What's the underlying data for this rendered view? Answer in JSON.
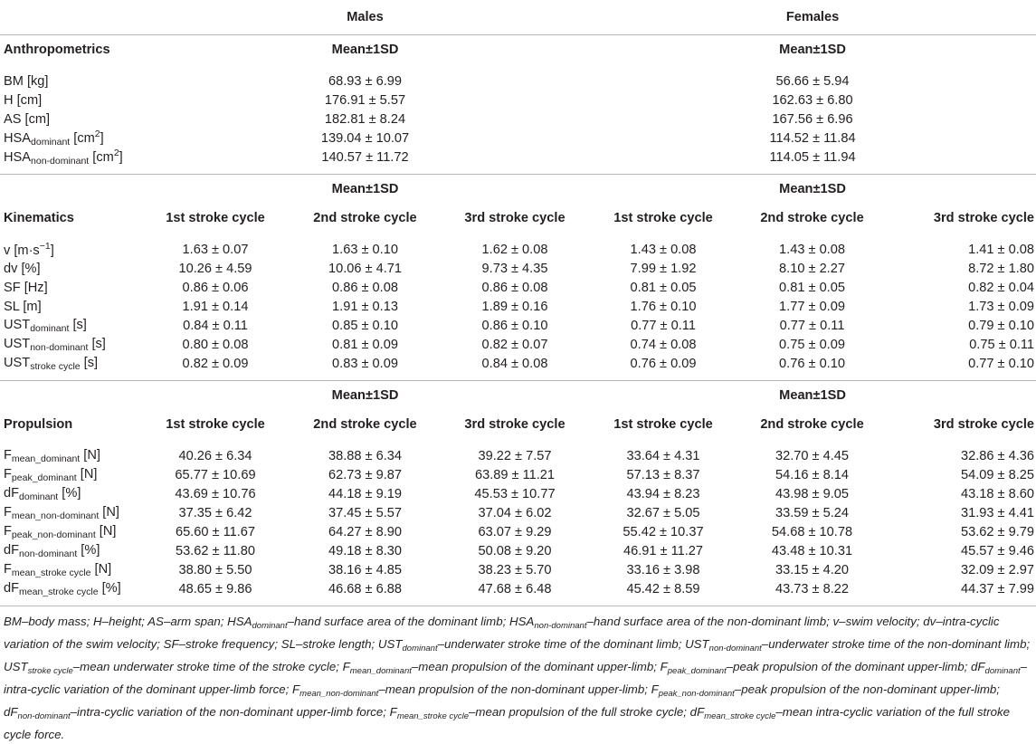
{
  "header": {
    "males": "Males",
    "females": "Females"
  },
  "anthro": {
    "title": "Anthropometrics",
    "mean_label": "Mean±1SD",
    "rows": [
      {
        "label": "BM [kg]",
        "m": "68.93 ± 6.99",
        "f": "56.66 ± 5.94"
      },
      {
        "label": "H [cm]",
        "m": "176.91 ± 5.57",
        "f": "162.63 ± 6.80"
      },
      {
        "label": "AS [cm]",
        "m": "182.81 ± 8.24",
        "f": "167.56 ± 6.96"
      },
      {
        "base": "HSA",
        "sub": "dominant",
        "unit_pre": " [cm",
        "sup": "2",
        "unit_post": "]",
        "m": "139.04 ± 10.07",
        "f": "114.52 ± 11.84"
      },
      {
        "base": "HSA",
        "sub": "non-dominant",
        "unit_pre": " [cm",
        "sup": "2",
        "unit_post": "]",
        "m": "140.57 ± 11.72",
        "f": "114.05 ± 11.94"
      }
    ]
  },
  "kin": {
    "title": "Kinematics",
    "mean_label": "Mean±1SD",
    "cycles": [
      "1st stroke cycle",
      "2nd stroke cycle",
      "3rd stroke cycle"
    ],
    "rows": [
      {
        "base": "v [m·s",
        "sup": "−1",
        "post": "]",
        "vals": [
          "1.63 ± 0.07",
          "1.63 ± 0.10",
          "1.62 ± 0.08",
          "1.43 ± 0.08",
          "1.43 ± 0.08",
          "1.41 ± 0.08"
        ]
      },
      {
        "base": "dv [%]",
        "vals": [
          "10.26 ± 4.59",
          "10.06 ± 4.71",
          "9.73 ± 4.35",
          "7.99 ± 1.92",
          "8.10 ± 2.27",
          "8.72 ± 1.80"
        ]
      },
      {
        "base": "SF [Hz]",
        "vals": [
          "0.86 ± 0.06",
          "0.86 ± 0.08",
          "0.86 ± 0.08",
          "0.81 ± 0.05",
          "0.81 ± 0.05",
          "0.82 ± 0.04"
        ]
      },
      {
        "base": "SL [m]",
        "vals": [
          "1.91 ± 0.14",
          "1.91 ± 0.13",
          "1.89 ± 0.16",
          "1.76 ± 0.10",
          "1.77 ± 0.09",
          "1.73 ± 0.09"
        ]
      },
      {
        "base": "UST",
        "sub": "dominant",
        "post": " [s]",
        "vals": [
          "0.84 ± 0.11",
          "0.85 ± 0.10",
          "0.86 ± 0.10",
          "0.77 ± 0.11",
          "0.77 ± 0.11",
          "0.79 ± 0.10"
        ]
      },
      {
        "base": "UST",
        "sub": "non-dominant",
        "post": " [s]",
        "vals": [
          "0.80 ± 0.08",
          "0.81 ± 0.09",
          "0.82 ± 0.07",
          "0.74 ± 0.08",
          "0.75 ± 0.09",
          "0.75 ± 0.11"
        ]
      },
      {
        "base": "UST",
        "sub": "stroke cycle",
        "post": " [s]",
        "vals": [
          "0.82 ± 0.09",
          "0.83 ± 0.09",
          "0.84 ± 0.08",
          "0.76 ± 0.09",
          "0.76 ± 0.10",
          "0.77 ± 0.10"
        ]
      }
    ]
  },
  "prop": {
    "title": "Propulsion",
    "mean_label": "Mean±1SD",
    "cycles": [
      "1st stroke cycle",
      "2nd stroke cycle",
      "3rd stroke cycle"
    ],
    "rows": [
      {
        "base": "F",
        "sub": "mean_dominant",
        "post": " [N]",
        "vals": [
          "40.26 ± 6.34",
          "38.88 ± 6.34",
          "39.22 ± 7.57",
          "33.64 ± 4.31",
          "32.70 ± 4.45",
          "32.86 ± 4.36"
        ]
      },
      {
        "base": "F",
        "sub": "peak_dominant",
        "post": " [N]",
        "vals": [
          "65.77 ± 10.69",
          "62.73 ± 9.87",
          "63.89 ± 11.21",
          "57.13 ± 8.37",
          "54.16 ± 8.14",
          "54.09 ± 8.25"
        ]
      },
      {
        "base": "dF",
        "sub": "dominant",
        "post": " [%]",
        "vals": [
          "43.69 ± 10.76",
          "44.18 ± 9.19",
          "45.53 ± 10.77",
          "43.94 ± 8.23",
          "43.98 ± 9.05",
          "43.18 ± 8.60"
        ]
      },
      {
        "base": "F",
        "sub": "mean_non-dominant",
        "post": " [N]",
        "vals": [
          "37.35 ± 6.42",
          "37.45 ± 5.57",
          "37.04 ± 6.02",
          "32.67 ± 5.05",
          "33.59 ± 5.24",
          "31.93 ± 4.41"
        ]
      },
      {
        "base": "F",
        "sub": "peak_non-dominant",
        "post": " [N]",
        "vals": [
          "65.60 ± 11.67",
          "64.27 ± 8.90",
          "63.07 ± 9.29",
          "55.42 ± 10.37",
          "54.68 ± 10.78",
          "53.62 ± 9.79"
        ]
      },
      {
        "base": "dF",
        "sub": "non-dominant",
        "post": " [%]",
        "vals": [
          "53.62 ± 11.80",
          "49.18 ± 8.30",
          "50.08 ± 9.20",
          "46.91 ± 11.27",
          "43.48 ± 10.31",
          "45.57 ± 9.46"
        ]
      },
      {
        "base": "F",
        "sub": "mean_stroke cycle",
        "post": " [N]",
        "vals": [
          "38.80 ± 5.50",
          "38.16 ± 4.85",
          "38.23 ± 5.70",
          "33.16 ± 3.98",
          "33.15 ± 4.20",
          "32.09 ± 2.97"
        ]
      },
      {
        "base": "dF",
        "sub": "mean_stroke cycle",
        "post": " [%]",
        "vals": [
          "48.65 ± 9.86",
          "46.68 ± 6.88",
          "47.68 ± 6.48",
          "45.42 ± 8.59",
          "43.73 ± 8.22",
          "44.37 ± 7.99"
        ]
      }
    ]
  },
  "footnote": [
    {
      "t": "BM"
    },
    {
      "d": "–"
    },
    {
      "t": "body mass; H"
    },
    {
      "d": "–"
    },
    {
      "t": "height; AS"
    },
    {
      "d": "–"
    },
    {
      "t": "arm span; HSA"
    },
    {
      "s": "dominant"
    },
    {
      "d": "–"
    },
    {
      "t": "hand surface area of the dominant limb; HSA"
    },
    {
      "s": "non-dominant"
    },
    {
      "d": "–"
    },
    {
      "t": "hand surface area of the non-dominant limb; v"
    },
    {
      "d": "–"
    },
    {
      "t": "swim velocity; dv"
    },
    {
      "d": "–"
    },
    {
      "t": "intra-cyclic variation of the swim velocity; SF"
    },
    {
      "d": "–"
    },
    {
      "t": "stroke frequency; SL"
    },
    {
      "d": "–"
    },
    {
      "t": "stroke length; UST"
    },
    {
      "s": "dominant"
    },
    {
      "d": "–"
    },
    {
      "t": "underwater stroke time of the dominant limb; UST"
    },
    {
      "s": "non-dominant"
    },
    {
      "d": "–"
    },
    {
      "t": "underwater stroke time of the non-dominant limb; UST"
    },
    {
      "s": "stroke cycle"
    },
    {
      "d": "–"
    },
    {
      "t": "mean underwater stroke time of the stroke cycle; F"
    },
    {
      "s": "mean_dominant"
    },
    {
      "d": "–"
    },
    {
      "t": "mean propulsion of the dominant upper-limb; F"
    },
    {
      "s": "peak_dominant"
    },
    {
      "d": "–"
    },
    {
      "t": "peak propulsion of the dominant upper-limb; dF"
    },
    {
      "s": "dominant"
    },
    {
      "d": "–"
    },
    {
      "t": "intra-cyclic variation of the dominant upper-limb force; F"
    },
    {
      "s": "mean_non-dominant"
    },
    {
      "d": "–"
    },
    {
      "t": "mean propulsion of the non-dominant upper-limb; F"
    },
    {
      "s": "peak_non-dominant"
    },
    {
      "d": "–"
    },
    {
      "t": "peak propulsion of the non-dominant upper-limb; dF"
    },
    {
      "s": "non-dominant"
    },
    {
      "d": "–"
    },
    {
      "t": "intra-cyclic variation of the non-dominant upper-limb force; F"
    },
    {
      "s": "mean_stroke cycle"
    },
    {
      "d": "–"
    },
    {
      "t": "mean propulsion of the full stroke cycle; dF"
    },
    {
      "s": "mean_stroke cycle"
    },
    {
      "d": "–"
    },
    {
      "t": "mean intra-cyclic variation of the full stroke cycle force."
    }
  ]
}
